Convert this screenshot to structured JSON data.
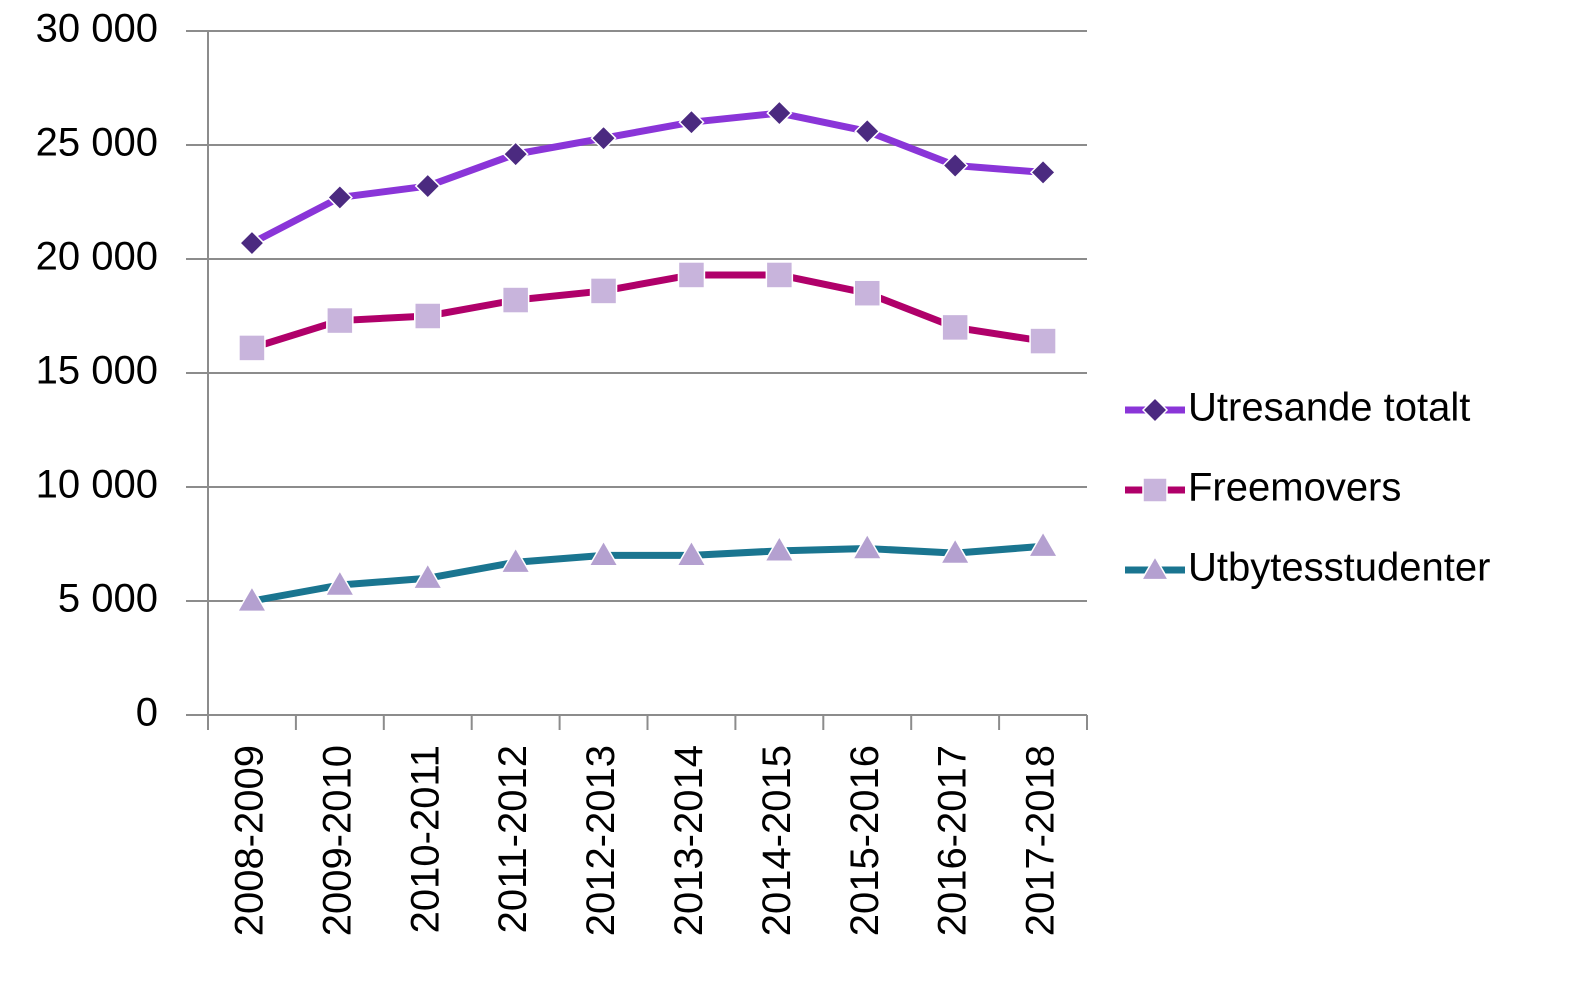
{
  "chart_data": {
    "type": "line",
    "categories": [
      "2008-2009",
      "2009-2010",
      "2010-2011",
      "2011-2012",
      "2012-2013",
      "2013-2014",
      "2014-2015",
      "2015-2016",
      "2016-2017",
      "2017-2018"
    ],
    "series": [
      {
        "name": "Utresande totalt",
        "color": "#8a35d8",
        "marker": "diamond",
        "marker_color": "#4b2a80",
        "values": [
          20700,
          22700,
          23200,
          24600,
          25300,
          26000,
          26400,
          25600,
          24100,
          23800
        ]
      },
      {
        "name": "Freemovers",
        "color": "#b0006a",
        "marker": "square",
        "marker_color": "#c8b4dc",
        "values": [
          16100,
          17300,
          17500,
          18200,
          18600,
          19300,
          19300,
          18500,
          17000,
          16400
        ]
      },
      {
        "name": "Utbytesstudenter",
        "color": "#1a7590",
        "marker": "triangle",
        "marker_color": "#b4a0d0",
        "values": [
          5000,
          5700,
          6000,
          6700,
          7000,
          7000,
          7200,
          7300,
          7100,
          7400
        ]
      }
    ],
    "ylim": [
      0,
      30000
    ],
    "yticks": [
      0,
      {
        "value": 5000,
        "label": "5 000"
      },
      {
        "value": 10000,
        "label": "10 000"
      },
      {
        "value": 15000,
        "label": "15 000"
      },
      {
        "value": 20000,
        "label": "20 000"
      },
      {
        "value": 25000,
        "label": "25 000"
      },
      {
        "value": 30000,
        "label": "30 000"
      }
    ],
    "grid": true,
    "legend": "right"
  }
}
